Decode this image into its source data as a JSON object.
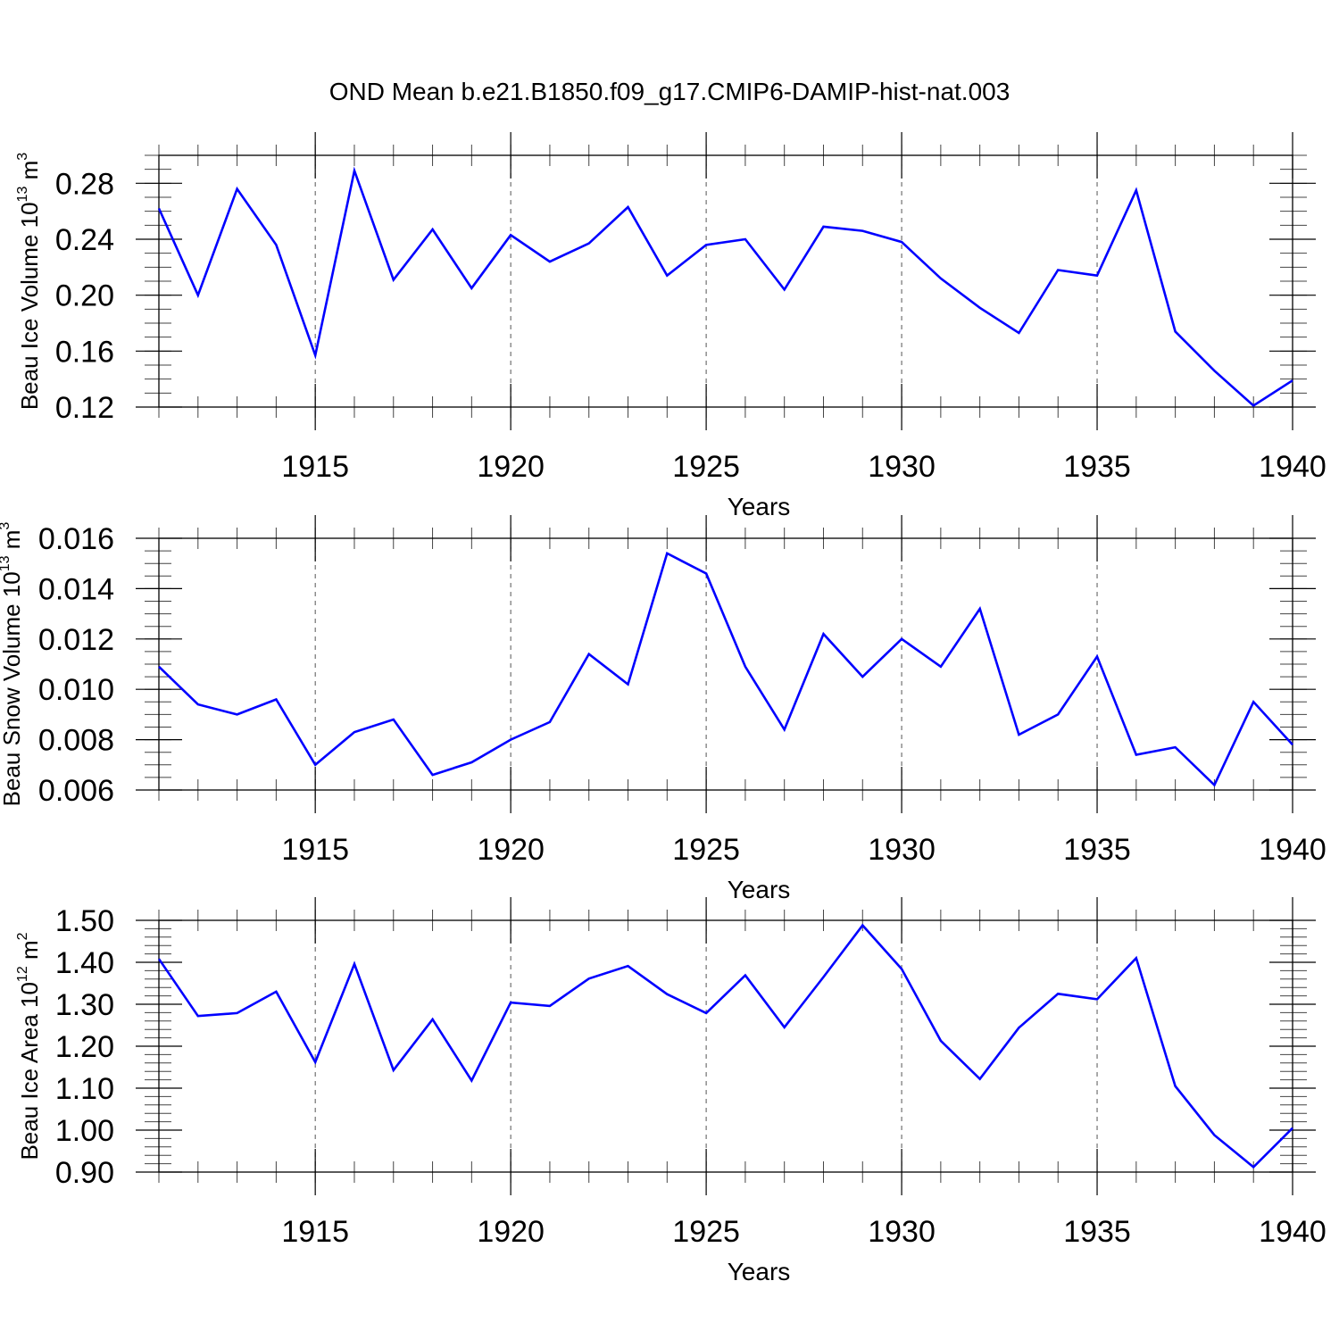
{
  "title": "OND Mean b.e21.B1850.f09_g17.CMIP6-DAMIP-hist-nat.003",
  "line_color": "#0000ff",
  "chart_data": [
    {
      "type": "line",
      "ylabel": {
        "main": "Beau Ice Volume 10",
        "exp": "13",
        "unit": " m",
        "unit_exp": "3"
      },
      "xlabel": "Years",
      "xlim": [
        1911,
        1940
      ],
      "ylim": [
        0.12,
        0.3
      ],
      "yticks": [
        0.12,
        0.16,
        0.2,
        0.24,
        0.28
      ],
      "ytick_labels": [
        "0.12",
        "0.16",
        "0.20",
        "0.24",
        "0.28"
      ],
      "yminor": 0.01,
      "xticks": [
        1915,
        1920,
        1925,
        1930,
        1935,
        1940
      ],
      "xtick_labels": [
        "1915",
        "1920",
        "1925",
        "1930",
        "1935",
        "1940"
      ],
      "x": [
        1911,
        1912,
        1913,
        1914,
        1915,
        1916,
        1917,
        1918,
        1919,
        1920,
        1921,
        1922,
        1923,
        1924,
        1925,
        1926,
        1927,
        1928,
        1929,
        1930,
        1931,
        1932,
        1933,
        1934,
        1935,
        1936,
        1937,
        1938,
        1939,
        1940
      ],
      "values": [
        0.262,
        0.2,
        0.276,
        0.236,
        0.157,
        0.289,
        0.211,
        0.247,
        0.205,
        0.243,
        0.224,
        0.237,
        0.263,
        0.214,
        0.236,
        0.24,
        0.204,
        0.249,
        0.246,
        0.238,
        0.212,
        0.191,
        0.173,
        0.218,
        0.214,
        0.275,
        0.174,
        0.146,
        0.121,
        0.139
      ]
    },
    {
      "type": "line",
      "ylabel": {
        "main": "Beau Snow Volume 10",
        "exp": "13",
        "unit": " m",
        "unit_exp": "3"
      },
      "xlabel": "Years",
      "xlim": [
        1911,
        1940
      ],
      "ylim": [
        0.006,
        0.016
      ],
      "yticks": [
        0.006,
        0.008,
        0.01,
        0.012,
        0.014,
        0.016
      ],
      "ytick_labels": [
        "0.006",
        "0.008",
        "0.010",
        "0.012",
        "0.014",
        "0.016"
      ],
      "yminor": 0.0005,
      "xticks": [
        1915,
        1920,
        1925,
        1930,
        1935,
        1940
      ],
      "xtick_labels": [
        "1915",
        "1920",
        "1925",
        "1930",
        "1935",
        "1940"
      ],
      "x": [
        1911,
        1912,
        1913,
        1914,
        1915,
        1916,
        1917,
        1918,
        1919,
        1920,
        1921,
        1922,
        1923,
        1924,
        1925,
        1926,
        1927,
        1928,
        1929,
        1930,
        1931,
        1932,
        1933,
        1934,
        1935,
        1936,
        1937,
        1938,
        1939,
        1940
      ],
      "values": [
        0.0109,
        0.0094,
        0.009,
        0.0096,
        0.007,
        0.0083,
        0.0088,
        0.0066,
        0.0071,
        0.008,
        0.0087,
        0.0114,
        0.0102,
        0.0154,
        0.0146,
        0.0109,
        0.0084,
        0.0122,
        0.0105,
        0.012,
        0.0109,
        0.0132,
        0.0082,
        0.009,
        0.0113,
        0.0074,
        0.0077,
        0.0062,
        0.0095,
        0.0078
      ]
    },
    {
      "type": "line",
      "ylabel": {
        "main": "Beau Ice Area 10",
        "exp": "12",
        "unit": " m",
        "unit_exp": "2"
      },
      "xlabel": "Years",
      "xlim": [
        1911,
        1940
      ],
      "ylim": [
        0.9,
        1.5
      ],
      "yticks": [
        0.9,
        1.0,
        1.1,
        1.2,
        1.3,
        1.4,
        1.5
      ],
      "ytick_labels": [
        "0.90",
        "1.00",
        "1.10",
        "1.20",
        "1.30",
        "1.40",
        "1.50"
      ],
      "yminor": 0.02,
      "xticks": [
        1915,
        1920,
        1925,
        1930,
        1935,
        1940
      ],
      "xtick_labels": [
        "1915",
        "1920",
        "1925",
        "1930",
        "1935",
        "1940"
      ],
      "x": [
        1911,
        1912,
        1913,
        1914,
        1915,
        1916,
        1917,
        1918,
        1919,
        1920,
        1921,
        1922,
        1923,
        1924,
        1925,
        1926,
        1927,
        1928,
        1929,
        1930,
        1931,
        1932,
        1933,
        1934,
        1935,
        1936,
        1937,
        1938,
        1939,
        1940
      ],
      "values": [
        1.408,
        1.272,
        1.279,
        1.33,
        1.162,
        1.396,
        1.143,
        1.264,
        1.118,
        1.304,
        1.296,
        1.361,
        1.391,
        1.324,
        1.279,
        1.369,
        1.245,
        1.365,
        1.488,
        1.384,
        1.213,
        1.122,
        1.244,
        1.325,
        1.312,
        1.41,
        1.105,
        0.988,
        0.912,
        1.005
      ]
    }
  ]
}
